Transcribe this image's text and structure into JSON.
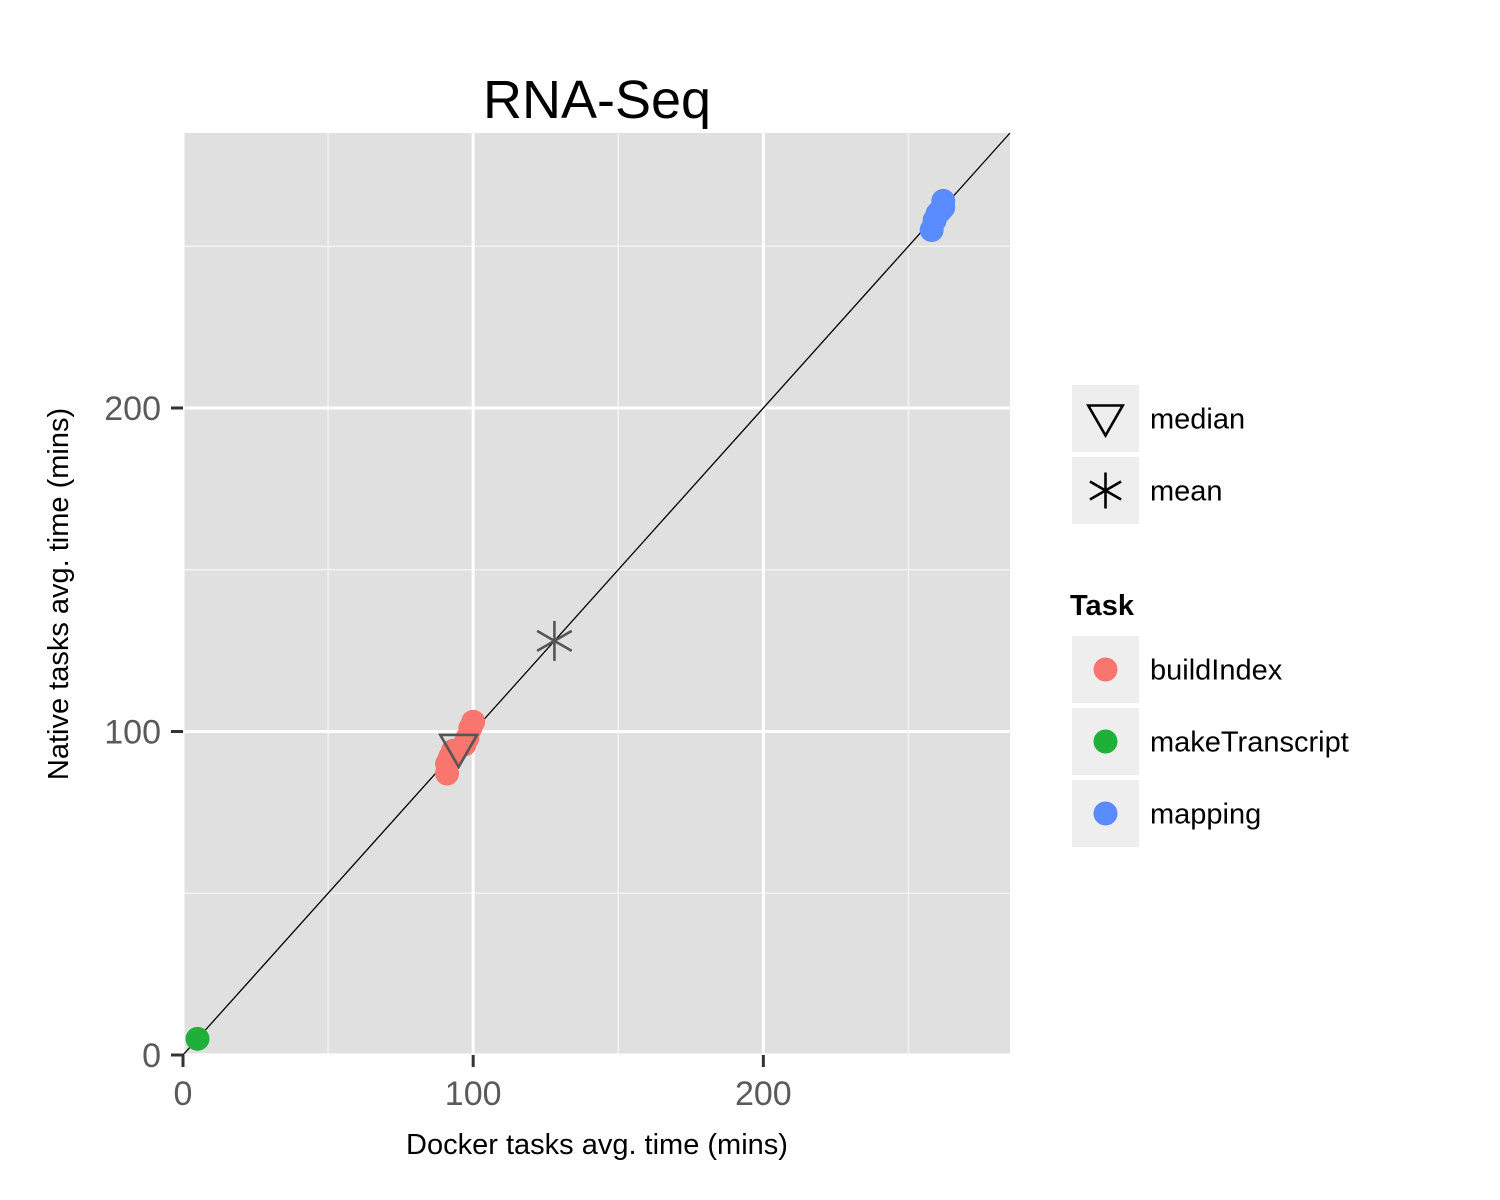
{
  "chart_data": {
    "type": "scatter",
    "title": "RNA-Seq",
    "xlabel": "Docker tasks avg. time (mins)",
    "ylabel": "Native tasks avg. time (mins)",
    "xlim": [
      0,
      285
    ],
    "ylim": [
      0,
      285
    ],
    "x_ticks": [
      0,
      100,
      200
    ],
    "y_ticks": [
      0,
      100,
      200
    ],
    "x_tick_labels": [
      "0",
      "100",
      "200"
    ],
    "y_tick_labels": [
      "0",
      "100",
      "200"
    ],
    "grid": true,
    "reference_line": "y = x",
    "background": "#e0e0e0",
    "legend_placement": "right",
    "stat_legend": [
      {
        "label": "median",
        "symbol": "triangle-down",
        "icon": "triangle-down-icon"
      },
      {
        "label": "mean",
        "symbol": "asterisk",
        "icon": "asterisk-icon"
      }
    ],
    "legend_title": "Task",
    "series": [
      {
        "name": "buildIndex",
        "color": "#f8766d",
        "points": [
          {
            "x": 91,
            "y": 87
          },
          {
            "x": 91,
            "y": 90
          },
          {
            "x": 92,
            "y": 92
          },
          {
            "x": 93,
            "y": 94
          },
          {
            "x": 97,
            "y": 96
          },
          {
            "x": 98,
            "y": 98
          },
          {
            "x": 99,
            "y": 101
          },
          {
            "x": 100,
            "y": 103
          }
        ]
      },
      {
        "name": "makeTranscript",
        "color": "#1fb03a",
        "points": [
          {
            "x": 5,
            "y": 5
          }
        ]
      },
      {
        "name": "mapping",
        "color": "#5a8cff",
        "points": [
          {
            "x": 258,
            "y": 255
          },
          {
            "x": 259,
            "y": 258
          },
          {
            "x": 260,
            "y": 260
          },
          {
            "x": 261,
            "y": 261
          },
          {
            "x": 262,
            "y": 262
          },
          {
            "x": 262,
            "y": 264
          }
        ]
      }
    ],
    "summary_points": [
      {
        "stat": "median",
        "symbol": "triangle-down",
        "x": 95,
        "y": 94
      },
      {
        "stat": "mean",
        "symbol": "asterisk",
        "x": 128,
        "y": 128
      }
    ]
  }
}
